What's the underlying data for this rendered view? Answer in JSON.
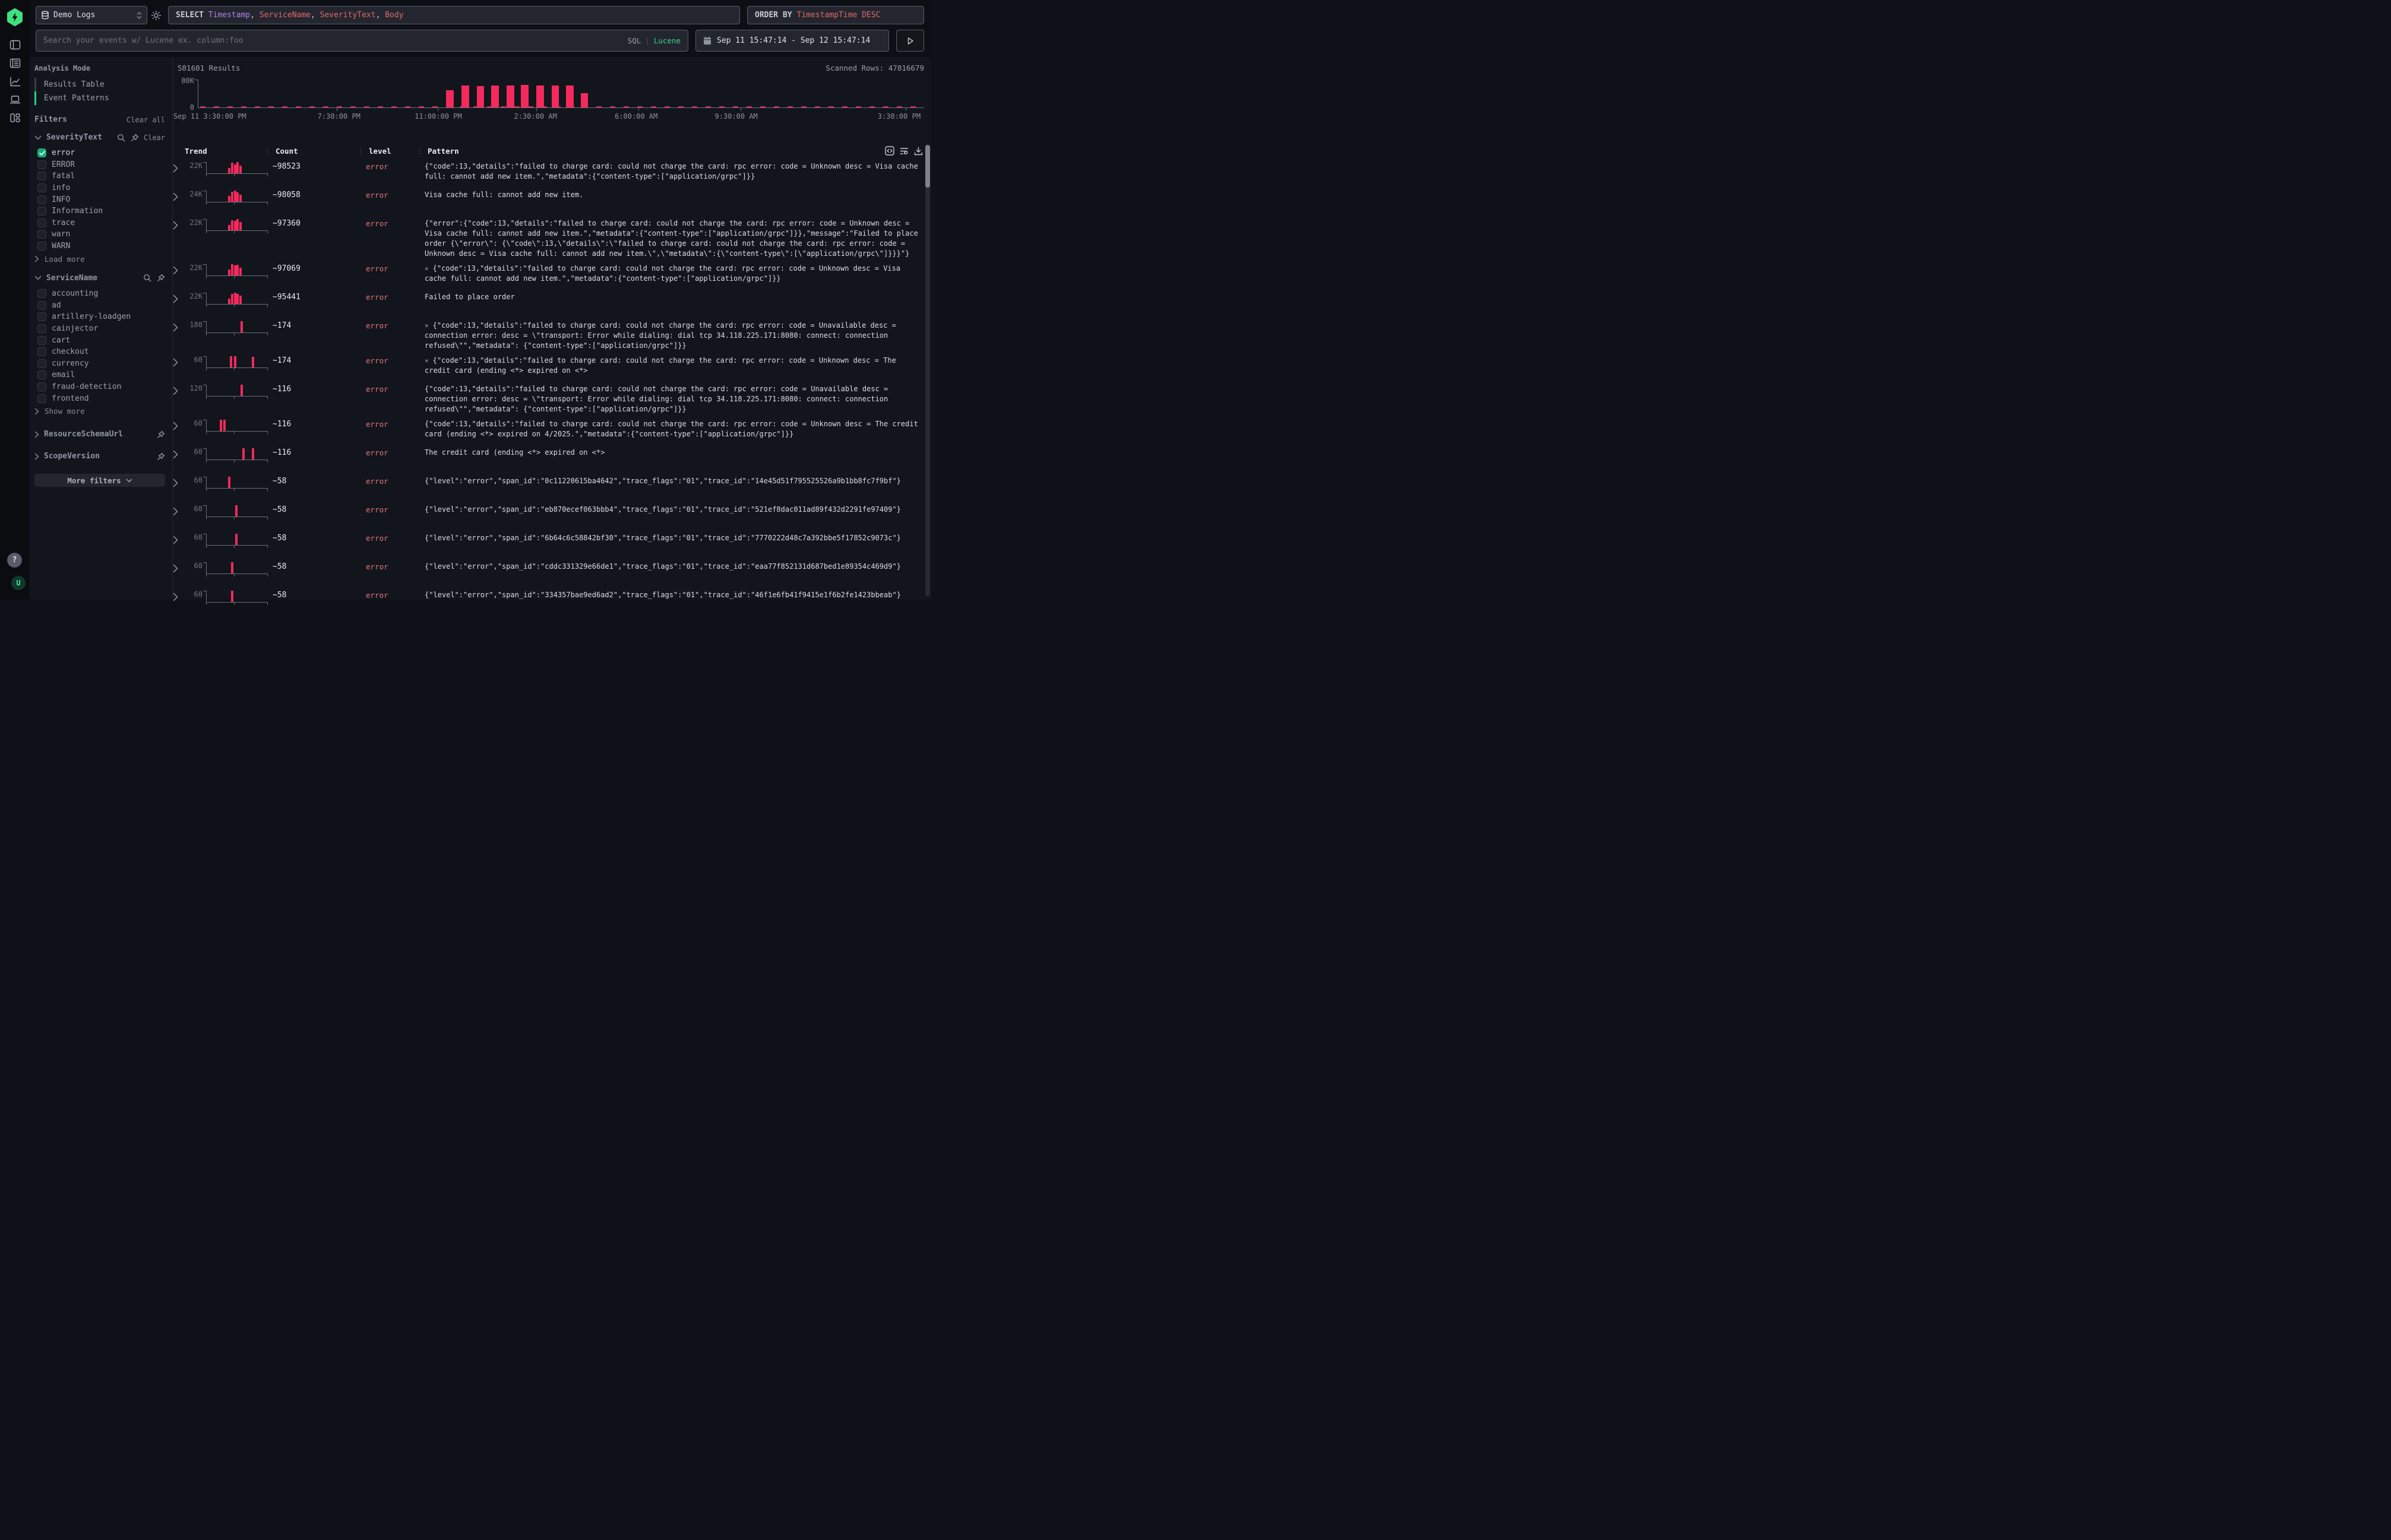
{
  "colors": {
    "accent_green": "#3fe07f",
    "bar_pink": "#f5295c",
    "error_text": "#e5767a",
    "keyword_purple": "#b084e8",
    "keyword_red": "#e0696e",
    "checkbox_green": "#18a97b"
  },
  "rail": {
    "icons": [
      "hyperdx-logo",
      "panel-toggle-icon",
      "logs-icon",
      "chart-icon",
      "sessions-icon",
      "dashboards-icon"
    ],
    "help_label": "?",
    "avatar_label": "U"
  },
  "topbar": {
    "source_label": "Demo Logs",
    "query": {
      "keyword": "SELECT",
      "columns": [
        "Timestamp",
        "ServiceName",
        "SeverityText",
        "Body"
      ]
    },
    "order_by": {
      "keyword": "ORDER BY",
      "value": "TimestampTime DESC"
    },
    "search_placeholder": "Search your events w/ Lucene ex. column:foo",
    "lang_sql": "SQL",
    "lang_sep": "|",
    "lang_lucene": "Lucene",
    "time_range": "Sep 11 15:47:14 - Sep 12 15:47:14"
  },
  "sidebar": {
    "analysis_mode": {
      "title": "Analysis Mode",
      "items": [
        {
          "label": "Results Table",
          "active": false
        },
        {
          "label": "Event Patterns",
          "active": true
        }
      ]
    },
    "filters_title": "Filters",
    "clear_all_label": "Clear all",
    "facets": [
      {
        "name": "SeverityText",
        "clear_label": "Clear",
        "more_label": "Load more",
        "options": [
          {
            "label": "error",
            "checked": true
          },
          {
            "label": "ERROR",
            "checked": false
          },
          {
            "label": "fatal",
            "checked": false
          },
          {
            "label": "info",
            "checked": false
          },
          {
            "label": "INFO",
            "checked": false
          },
          {
            "label": "Information",
            "checked": false
          },
          {
            "label": "trace",
            "checked": false
          },
          {
            "label": "warn",
            "checked": false
          },
          {
            "label": "WARN",
            "checked": false
          }
        ]
      },
      {
        "name": "ServiceName",
        "clear_label": "",
        "more_label": "Show more",
        "options": [
          {
            "label": "accounting",
            "checked": false
          },
          {
            "label": "ad",
            "checked": false
          },
          {
            "label": "artillery-loadgen",
            "checked": false
          },
          {
            "label": "cainjector",
            "checked": false
          },
          {
            "label": "cart",
            "checked": false
          },
          {
            "label": "checkout",
            "checked": false
          },
          {
            "label": "currency",
            "checked": false
          },
          {
            "label": "email",
            "checked": false
          },
          {
            "label": "fraud-detection",
            "checked": false
          },
          {
            "label": "frontend",
            "checked": false
          }
        ]
      }
    ],
    "collapsed_facets": [
      {
        "name": "ResourceSchemaUrl"
      },
      {
        "name": "ScopeVersion"
      }
    ],
    "more_filters_label": "More filters"
  },
  "results_bar": {
    "count": "581601 Results",
    "scanned": "Scanned Rows: 47816679"
  },
  "chart_data": {
    "type": "bar",
    "title": "581601 Results",
    "ylabel_top": "80K",
    "ylabel_bottom": "0",
    "ymax": 80000,
    "grid": false,
    "x_ticks": [
      {
        "label": "Sep 11 3:30:00 PM",
        "pos": 0.0
      },
      {
        "label": "7:30:00 PM",
        "pos": 0.191
      },
      {
        "label": "11:00:00 PM",
        "pos": 0.33
      },
      {
        "label": "2:30:00 AM",
        "pos": 0.466
      },
      {
        "label": "6:00:00 AM",
        "pos": 0.607
      },
      {
        "label": "9:30:00 AM",
        "pos": 0.747
      },
      {
        "label": "3:30:00 PM",
        "pos": 0.975
      }
    ],
    "bars": [
      {
        "pos": 0.342,
        "value": 48000
      },
      {
        "pos": 0.363,
        "value": 61500
      },
      {
        "pos": 0.384,
        "value": 60000
      },
      {
        "pos": 0.404,
        "value": 62500
      },
      {
        "pos": 0.425,
        "value": 62500
      },
      {
        "pos": 0.445,
        "value": 63500
      },
      {
        "pos": 0.466,
        "value": 62500
      },
      {
        "pos": 0.487,
        "value": 62500
      },
      {
        "pos": 0.507,
        "value": 61500
      },
      {
        "pos": 0.527,
        "value": 40000
      }
    ],
    "baseline_note": "tiny near-zero counts across the whole time range"
  },
  "table": {
    "columns": [
      "Trend",
      "Count",
      "level",
      "Pattern"
    ],
    "rows": [
      {
        "trend_max": "22K",
        "count": "~98523",
        "level": "error",
        "flagged": false,
        "bars": [
          {
            "p": 0.36,
            "h": 0.5
          },
          {
            "p": 0.405,
            "h": 0.95
          },
          {
            "p": 0.45,
            "h": 0.8
          },
          {
            "p": 0.495,
            "h": 1.0
          },
          {
            "p": 0.54,
            "h": 0.7
          }
        ],
        "pattern": "{\"code\":13,\"details\":\"failed to charge card: could not charge the card: rpc error: code = Unknown desc = Visa cache full: cannot add new item.\",\"metadata\":{\"content-type\":[\"application/grpc\"]}}"
      },
      {
        "trend_max": "24K",
        "count": "~98058",
        "level": "error",
        "flagged": false,
        "bars": [
          {
            "p": 0.36,
            "h": 0.55
          },
          {
            "p": 0.405,
            "h": 0.9
          },
          {
            "p": 0.45,
            "h": 1.0
          },
          {
            "p": 0.495,
            "h": 0.85
          },
          {
            "p": 0.54,
            "h": 0.65
          }
        ],
        "pattern": "Visa cache full: cannot add new item."
      },
      {
        "trend_max": "22K",
        "count": "~97360",
        "level": "error",
        "flagged": false,
        "bars": [
          {
            "p": 0.36,
            "h": 0.5
          },
          {
            "p": 0.405,
            "h": 0.9
          },
          {
            "p": 0.45,
            "h": 0.85
          },
          {
            "p": 0.495,
            "h": 1.0
          },
          {
            "p": 0.54,
            "h": 0.75
          }
        ],
        "pattern": "{\"error\":{\"code\":13,\"details\":\"failed to charge card: could not charge the card: rpc error: code = Unknown desc = Visa cache full: cannot add new item.\",\"metadata\":{\"content-type\":[\"application/grpc\"]}},\"message\":\"Failed to place order {\\\"error\\\": {\\\"code\\\":13,\\\"details\\\":\\\"failed to charge card: could not charge the card: rpc error: code = Unknown desc = Visa cache full: cannot add new item.\\\",\\\"metadata\\\":{\\\"content-type\\\":[\\\"application/grpc\\\"]}}}\"}"
      },
      {
        "trend_max": "22K",
        "count": "~97069",
        "level": "error",
        "flagged": true,
        "bars": [
          {
            "p": 0.36,
            "h": 0.55
          },
          {
            "p": 0.405,
            "h": 1.0
          },
          {
            "p": 0.45,
            "h": 0.9
          },
          {
            "p": 0.495,
            "h": 0.95
          },
          {
            "p": 0.54,
            "h": 0.7
          }
        ],
        "pattern": "{\"code\":13,\"details\":\"failed to charge card: could not charge the card: rpc error: code = Unknown desc = Visa cache full: cannot add new item.\",\"metadata\":{\"content-type\":[\"application/grpc\"]}}"
      },
      {
        "trend_max": "22K",
        "count": "~95441",
        "level": "error",
        "flagged": false,
        "bars": [
          {
            "p": 0.36,
            "h": 0.5
          },
          {
            "p": 0.405,
            "h": 0.9
          },
          {
            "p": 0.45,
            "h": 1.0
          },
          {
            "p": 0.495,
            "h": 0.9
          },
          {
            "p": 0.54,
            "h": 0.75
          }
        ],
        "pattern": "Failed to place order"
      },
      {
        "trend_max": "180",
        "count": "~174",
        "level": "error",
        "flagged": true,
        "bars": [
          {
            "p": 0.555,
            "h": 1.0
          }
        ],
        "pattern": "{\"code\":13,\"details\":\"failed to charge card: could not charge the card: rpc error: code = Unavailable desc = connection error: desc = \\\"transport: Error while dialing: dial tcp 34.118.225.171:8080: connect: connection refused\\\"\",\"metadata\": {\"content-type\":[\"application/grpc\"]}}"
      },
      {
        "trend_max": "60",
        "count": "~174",
        "level": "error",
        "flagged": true,
        "bars": [
          {
            "p": 0.385,
            "h": 1.0
          },
          {
            "p": 0.455,
            "h": 1.0
          },
          {
            "p": 0.74,
            "h": 0.95
          }
        ],
        "pattern": "{\"code\":13,\"details\":\"failed to charge card: could not charge the card: rpc error: code = Unknown desc = The credit card (ending <*> expired on <*>"
      },
      {
        "trend_max": "120",
        "count": "~116",
        "level": "error",
        "flagged": false,
        "bars": [
          {
            "p": 0.555,
            "h": 1.0
          }
        ],
        "pattern": "{\"code\":13,\"details\":\"failed to charge card: could not charge the card: rpc error: code = Unavailable desc = connection error: desc = \\\"transport: Error while dialing: dial tcp 34.118.225.171:8080: connect: connection refused\\\"\",\"metadata\": {\"content-type\":[\"application/grpc\"]}}"
      },
      {
        "trend_max": "60",
        "count": "~116",
        "level": "error",
        "flagged": false,
        "bars": [
          {
            "p": 0.225,
            "h": 1.0
          },
          {
            "p": 0.275,
            "h": 1.0
          }
        ],
        "pattern": "{\"code\":13,\"details\":\"failed to charge card: could not charge the card: rpc error: code = Unknown desc = The credit card (ending <*> expired on 4/2025.\",\"metadata\":{\"content-type\":[\"application/grpc\"]}}"
      },
      {
        "trend_max": "60",
        "count": "~116",
        "level": "error",
        "flagged": false,
        "bars": [
          {
            "p": 0.585,
            "h": 1.0
          },
          {
            "p": 0.745,
            "h": 1.0
          }
        ],
        "pattern": "The credit card (ending <*> expired on <*>"
      },
      {
        "trend_max": "60",
        "count": "~58",
        "level": "error",
        "flagged": false,
        "bars": [
          {
            "p": 0.355,
            "h": 1.0
          }
        ],
        "pattern": "{\"level\":\"error\",\"span_id\":\"0c11220615ba4642\",\"trace_flags\":\"01\",\"trace_id\":\"14e45d51f795525526a9b1bb8fc7f9bf\"}"
      },
      {
        "trend_max": "60",
        "count": "~58",
        "level": "error",
        "flagged": false,
        "bars": [
          {
            "p": 0.475,
            "h": 1.0
          }
        ],
        "pattern": "{\"level\":\"error\",\"span_id\":\"eb870ecef063bbb4\",\"trace_flags\":\"01\",\"trace_id\":\"521ef8dac011ad89f432d2291fe97409\"}"
      },
      {
        "trend_max": "60",
        "count": "~58",
        "level": "error",
        "flagged": false,
        "bars": [
          {
            "p": 0.475,
            "h": 1.0
          }
        ],
        "pattern": "{\"level\":\"error\",\"span_id\":\"6b64c6c58842bf30\",\"trace_flags\":\"01\",\"trace_id\":\"7770222d48c7a392bbe5f17852c9073c\"}"
      },
      {
        "trend_max": "60",
        "count": "~58",
        "level": "error",
        "flagged": false,
        "bars": [
          {
            "p": 0.405,
            "h": 1.0
          }
        ],
        "pattern": "{\"level\":\"error\",\"span_id\":\"cddc331329e66de1\",\"trace_flags\":\"01\",\"trace_id\":\"eaa77f852131d687bed1e89354c469d9\"}"
      },
      {
        "trend_max": "60",
        "count": "~58",
        "level": "error",
        "flagged": false,
        "bars": [
          {
            "p": 0.405,
            "h": 1.0
          }
        ],
        "pattern": "{\"level\":\"error\",\"span_id\":\"334357bae9ed6ad2\",\"trace_flags\":\"01\",\"trace_id\":\"46f1e6fb41f9415e1f6b2fe1423bbeab\"}"
      }
    ]
  }
}
